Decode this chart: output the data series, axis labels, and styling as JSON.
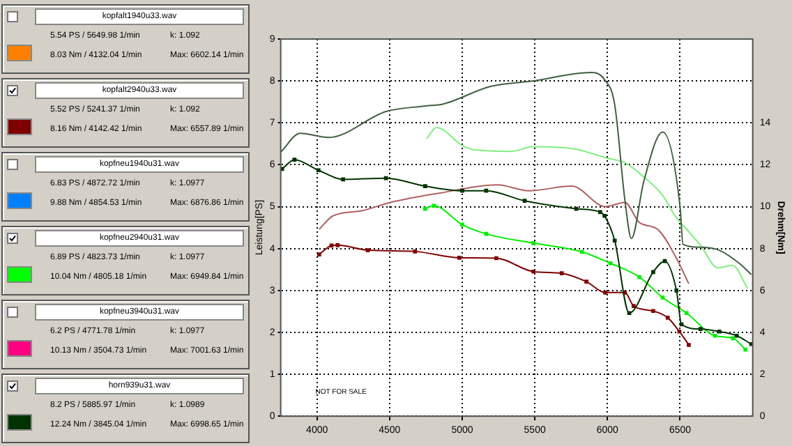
{
  "chart_data": {
    "type": "line",
    "ylabel": "Leistung[PS]",
    "y2label": "Drehm[Nm]",
    "xlim": [
      3750,
      7000
    ],
    "xticks": [
      4000,
      4500,
      5000,
      5500,
      6000,
      6500
    ],
    "ylim": [
      0,
      9
    ],
    "yticks": [
      0,
      1,
      2,
      3,
      4,
      5,
      6,
      7,
      8,
      9
    ],
    "y2lim": [
      0,
      18
    ],
    "y2ticks": [
      0,
      2,
      4,
      6,
      8,
      10,
      12,
      14
    ],
    "grid": true,
    "legend": false,
    "series": [
      {
        "color": "#406040",
        "marker": "none",
        "x": [
          3750,
          3885,
          4080,
          4475,
          4740,
          4870,
          5195,
          5490,
          5885,
          5980,
          6050,
          6120,
          6165,
          6250,
          6380,
          6500,
          6520,
          6640,
          6770,
          6910,
          6990
        ],
        "values": [
          6.3,
          6.75,
          6.65,
          7.27,
          7.4,
          7.45,
          7.87,
          8.0,
          8.2,
          8.03,
          7.43,
          5.16,
          4.24,
          5.6,
          6.78,
          5.0,
          4.1,
          4.03,
          3.96,
          3.64,
          3.38
        ]
      },
      {
        "color": "#003300",
        "marker": "square",
        "axis": "y2",
        "x": [
          3760,
          3845,
          4010,
          4180,
          4475,
          4745,
          5000,
          5165,
          5430,
          5785,
          5950,
          5980,
          6050,
          6150,
          6315,
          6395,
          6475,
          6510,
          6640,
          6770,
          6890,
          6990
        ],
        "values": [
          11.8,
          12.24,
          11.74,
          11.3,
          11.36,
          10.98,
          10.76,
          10.76,
          10.28,
          9.9,
          9.74,
          9.56,
          8.38,
          4.92,
          6.88,
          7.4,
          6.0,
          4.38,
          4.16,
          4.04,
          3.84,
          3.44
        ]
      },
      {
        "color": "#b06060",
        "marker": "none",
        "x": [
          4015,
          4110,
          4305,
          4505,
          4840,
          5241,
          5460,
          5755,
          5985,
          6120,
          6220,
          6345,
          6475,
          6560
        ],
        "values": [
          4.46,
          4.78,
          4.9,
          5.1,
          5.32,
          5.52,
          5.38,
          5.49,
          5.0,
          5.1,
          4.62,
          4.46,
          3.77,
          3.16
        ]
      },
      {
        "color": "#800000",
        "marker": "square",
        "axis": "y2",
        "x": [
          4015,
          4100,
          4142,
          4350,
          4675,
          4980,
          5235,
          5490,
          5685,
          5855,
          5985,
          6120,
          6180,
          6315,
          6415,
          6495,
          6560
        ],
        "values": [
          7.72,
          8.14,
          8.16,
          7.92,
          7.86,
          7.56,
          7.54,
          6.9,
          6.82,
          6.42,
          5.9,
          5.9,
          5.26,
          5.02,
          4.7,
          4.04,
          3.4
        ]
      },
      {
        "color": "#80ee80",
        "marker": "none",
        "x": [
          4755,
          4823,
          5000,
          5065,
          5335,
          5490,
          5785,
          5985,
          6130,
          6250,
          6380,
          6475,
          6545,
          6640,
          6760,
          6860,
          6965
        ],
        "values": [
          6.62,
          6.89,
          6.46,
          6.37,
          6.32,
          6.43,
          6.37,
          6.17,
          6.03,
          5.71,
          5.27,
          4.73,
          4.46,
          4.08,
          3.54,
          3.6,
          3.05
        ]
      },
      {
        "color": "#00ee00",
        "marker": "square",
        "axis": "y2",
        "x": [
          4745,
          4805,
          5000,
          5165,
          5490,
          5825,
          6020,
          6220,
          6380,
          6545,
          6740,
          6865,
          6950
        ],
        "values": [
          9.9,
          10.04,
          9.14,
          8.7,
          8.26,
          7.84,
          7.3,
          6.64,
          5.66,
          4.92,
          3.84,
          3.72,
          3.18
        ]
      }
    ],
    "annotations": [
      "kopfalt1940u33.wav",
      "5.54 PS / 5649.98 1/min",
      "k: 1.092",
      "8.03 Nm / 4132.04 1/min",
      "Max: 6602.14 1/min",
      "kopfalt2940u33.wav",
      "5.52 PS / 5241.37 1/min",
      "k: 1.092",
      "8.16 Nm / 4142.42 1/min",
      "Max: 6557.89 1/min",
      "kopfneu1940u31.wav",
      "6.83 PS / 4872.72 1/min",
      "k: 1.0977",
      "9.88 Nm / 4854.53 1/min",
      "Max: 6876.86 1/min",
      "kopfneu2940u31.wav",
      "6.89 PS / 4823.73 1/min",
      "k: 1.0977",
      "10.04 Nm / 4805.18 1/min",
      "Max: 6949.84 1/min",
      "kopfneu3940u31.wav",
      "6.2 PS / 4771.78 1/min",
      "k: 1.0977",
      "10.13 Nm / 3504.73 1/min",
      "Max: 7001.63 1/min",
      "horn939u31.wav",
      "8.2 PS / 5885.97 1/min",
      "k: 1.0989",
      "12.24 Nm / 3845.04 1/min",
      "Max: 6998.65 1/min",
      "NOT FOR SALE"
    ]
  }
}
